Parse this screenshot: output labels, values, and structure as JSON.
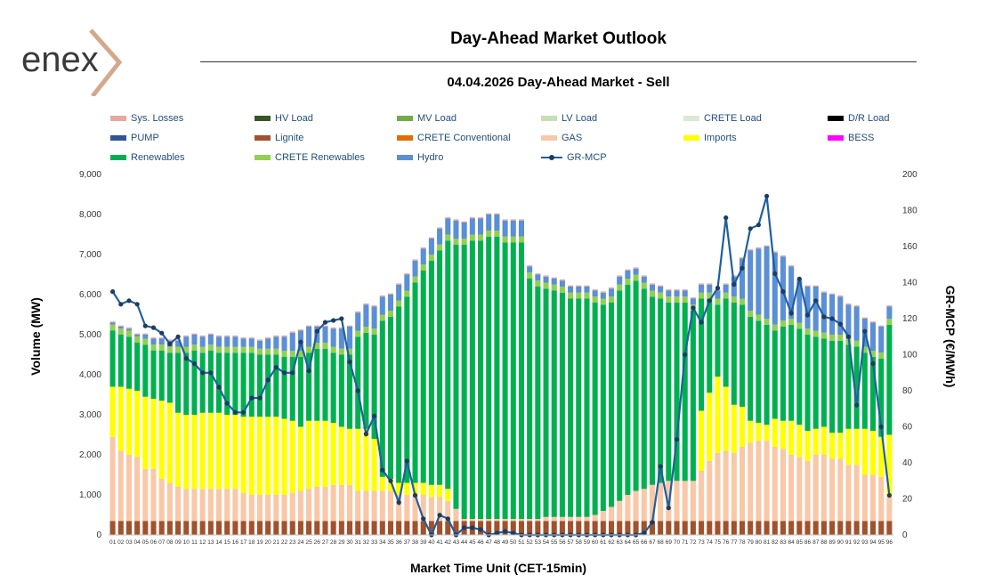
{
  "header": {
    "logo_text": "enex",
    "title": "Day-Ahead Market Outlook",
    "subtitle": "04.04.2026  Day-Ahead Market - Sell"
  },
  "colors": {
    "Sys. Losses": "#e6a8a0",
    "HV Load": "#375623",
    "MV Load": "#70ad47",
    "LV Load": "#c5e0b4",
    "CRETE Load": "#d9ead3",
    "D/R Load": "#000000",
    "PUMP": "#2f5597",
    "Lignite": "#a0522d",
    "CRETE Conventional": "#e36c09",
    "GAS": "#f8c8a8",
    "Imports": "#ffff00",
    "BESS": "#ff00ff",
    "Renewables": "#00b050",
    "CRETE Renewables": "#92d050",
    "Hydro": "#5b8fd6",
    "GR-MCP": "#1f5f9e",
    "lignite_stripe": "#8b3a1a"
  },
  "chart_data": {
    "type": "bar",
    "title": "Day-Ahead Market Outlook",
    "xlabel": "Market Time Unit (CET-15min)",
    "ylabel": "Volume (MW)",
    "y2label": "GR-MCP (€/MWh)",
    "ylim": [
      0,
      9000
    ],
    "y2lim": [
      0,
      200
    ],
    "yticks": [
      "0",
      "1,000",
      "2,000",
      "3,000",
      "4,000",
      "5,000",
      "6,000",
      "7,000",
      "8,000",
      "9,000"
    ],
    "y2ticks": [
      "0",
      "20",
      "40",
      "60",
      "80",
      "100",
      "120",
      "140",
      "160",
      "180",
      "200"
    ],
    "legend": [
      {
        "name": "Sys. Losses",
        "kind": "bar"
      },
      {
        "name": "HV Load",
        "kind": "bar"
      },
      {
        "name": "MV Load",
        "kind": "bar"
      },
      {
        "name": "LV Load",
        "kind": "bar"
      },
      {
        "name": "CRETE Load",
        "kind": "bar"
      },
      {
        "name": "D/R Load",
        "kind": "bar"
      },
      {
        "name": "PUMP",
        "kind": "bar"
      },
      {
        "name": "Lignite",
        "kind": "bar"
      },
      {
        "name": "CRETE Conventional",
        "kind": "bar"
      },
      {
        "name": "GAS",
        "kind": "bar"
      },
      {
        "name": "Imports",
        "kind": "bar"
      },
      {
        "name": "BESS",
        "kind": "bar"
      },
      {
        "name": "Renewables",
        "kind": "bar"
      },
      {
        "name": "CRETE Renewables",
        "kind": "bar"
      },
      {
        "name": "Hydro",
        "kind": "bar"
      },
      {
        "name": "GR-MCP",
        "kind": "line"
      }
    ],
    "categories": [
      "01",
      "02",
      "03",
      "04",
      "05",
      "06",
      "07",
      "08",
      "09",
      "10",
      "11",
      "12",
      "13",
      "14",
      "15",
      "16",
      "17",
      "18",
      "19",
      "20",
      "21",
      "22",
      "23",
      "24",
      "25",
      "26",
      "27",
      "28",
      "29",
      "30",
      "31",
      "32",
      "33",
      "34",
      "35",
      "36",
      "37",
      "38",
      "39",
      "40",
      "41",
      "42",
      "43",
      "44",
      "45",
      "46",
      "47",
      "48",
      "49",
      "50",
      "51",
      "52",
      "53",
      "54",
      "55",
      "56",
      "57",
      "58",
      "59",
      "60",
      "61",
      "62",
      "63",
      "64",
      "65",
      "66",
      "67",
      "68",
      "69",
      "70",
      "71",
      "72",
      "73",
      "74",
      "75",
      "76",
      "77",
      "78",
      "79",
      "80",
      "81",
      "82",
      "83",
      "84",
      "85",
      "86",
      "87",
      "88",
      "89",
      "90",
      "91",
      "92",
      "93",
      "94",
      "95",
      "96"
    ],
    "series": [
      {
        "name": "Lignite",
        "values": [
          350,
          350,
          350,
          350,
          350,
          350,
          350,
          350,
          350,
          350,
          350,
          350,
          350,
          350,
          350,
          350,
          350,
          350,
          350,
          350,
          350,
          350,
          350,
          350,
          350,
          350,
          350,
          350,
          350,
          350,
          350,
          350,
          350,
          350,
          350,
          350,
          350,
          350,
          350,
          350,
          350,
          350,
          350,
          350,
          350,
          350,
          350,
          350,
          350,
          350,
          350,
          350,
          350,
          350,
          350,
          350,
          350,
          350,
          350,
          350,
          350,
          350,
          350,
          350,
          350,
          350,
          350,
          350,
          350,
          350,
          350,
          350,
          350,
          350,
          350,
          350,
          350,
          350,
          350,
          350,
          350,
          350,
          350,
          350,
          350,
          350,
          350,
          350,
          350,
          350,
          350,
          350,
          350,
          350,
          350,
          350
        ]
      },
      {
        "name": "GAS",
        "values": [
          2100,
          1750,
          1650,
          1600,
          1300,
          1300,
          1050,
          950,
          850,
          800,
          800,
          800,
          800,
          800,
          800,
          800,
          700,
          650,
          650,
          650,
          650,
          650,
          700,
          750,
          800,
          850,
          850,
          900,
          900,
          900,
          750,
          750,
          750,
          750,
          750,
          650,
          650,
          650,
          650,
          600,
          600,
          500,
          300,
          50,
          50,
          50,
          50,
          50,
          50,
          50,
          50,
          50,
          50,
          100,
          100,
          100,
          100,
          100,
          100,
          150,
          250,
          350,
          500,
          650,
          750,
          800,
          900,
          950,
          1000,
          1000,
          1000,
          1000,
          1250,
          1500,
          1700,
          1750,
          1700,
          1850,
          1950,
          2000,
          2000,
          1850,
          1800,
          1650,
          1600,
          1500,
          1650,
          1650,
          1550,
          1550,
          1400,
          1400,
          1150,
          1150,
          1100,
          600
        ]
      },
      {
        "name": "Imports",
        "values": [
          1250,
          1600,
          1650,
          1650,
          1800,
          1750,
          1950,
          2000,
          1850,
          1850,
          1850,
          1900,
          1900,
          1900,
          1850,
          1850,
          1900,
          1950,
          1950,
          1950,
          1950,
          1900,
          1800,
          1600,
          1700,
          1650,
          1650,
          1550,
          1450,
          1400,
          1550,
          1550,
          1300,
          350,
          300,
          300,
          300,
          300,
          300,
          300,
          300,
          300,
          0,
          0,
          0,
          0,
          0,
          0,
          0,
          0,
          0,
          0,
          0,
          0,
          0,
          0,
          0,
          0,
          0,
          0,
          0,
          0,
          0,
          0,
          0,
          0,
          0,
          0,
          0,
          0,
          0,
          0,
          1500,
          1700,
          1900,
          1600,
          1200,
          1000,
          550,
          450,
          400,
          700,
          700,
          850,
          800,
          750,
          650,
          700,
          650,
          650,
          900,
          900,
          1150,
          1100,
          1000,
          1550
        ]
      },
      {
        "name": "Renewables",
        "values": [
          1400,
          1300,
          1300,
          1200,
          1300,
          1200,
          1250,
          1250,
          1500,
          1550,
          1600,
          1500,
          1550,
          1500,
          1550,
          1550,
          1600,
          1600,
          1550,
          1550,
          1550,
          1550,
          1600,
          1750,
          1700,
          1800,
          1800,
          1750,
          1800,
          1850,
          2300,
          2400,
          2600,
          3900,
          4050,
          4400,
          4650,
          5000,
          5300,
          5600,
          5850,
          6200,
          6600,
          6850,
          6950,
          6950,
          7050,
          7050,
          6900,
          6900,
          6900,
          6000,
          5800,
          5700,
          5650,
          5600,
          5450,
          5450,
          5450,
          5300,
          5150,
          5100,
          5250,
          5250,
          5250,
          5000,
          4700,
          4600,
          4450,
          4450,
          4450,
          4250,
          2800,
          2350,
          1800,
          2200,
          2550,
          2550,
          2600,
          2550,
          2500,
          2200,
          2350,
          2400,
          2400,
          2400,
          2300,
          2200,
          2300,
          2300,
          2100,
          2050,
          1900,
          1850,
          1950,
          2750
        ]
      },
      {
        "name": "CRETE Renewables",
        "values": [
          150,
          150,
          150,
          150,
          150,
          150,
          150,
          150,
          150,
          150,
          150,
          150,
          150,
          150,
          150,
          150,
          150,
          150,
          150,
          150,
          150,
          150,
          150,
          150,
          150,
          150,
          150,
          150,
          150,
          150,
          150,
          150,
          150,
          150,
          150,
          150,
          150,
          150,
          150,
          150,
          150,
          150,
          150,
          150,
          150,
          150,
          150,
          150,
          150,
          150,
          150,
          150,
          150,
          150,
          150,
          150,
          150,
          150,
          150,
          150,
          150,
          150,
          150,
          150,
          150,
          150,
          150,
          150,
          150,
          150,
          150,
          150,
          150,
          150,
          150,
          150,
          150,
          150,
          150,
          150,
          150,
          150,
          150,
          150,
          150,
          150,
          150,
          150,
          150,
          150,
          150,
          150,
          150,
          150,
          150,
          150
        ]
      },
      {
        "name": "Hydro",
        "values": [
          50,
          50,
          50,
          50,
          100,
          150,
          150,
          150,
          150,
          250,
          250,
          250,
          250,
          250,
          250,
          250,
          200,
          200,
          200,
          250,
          300,
          350,
          450,
          500,
          500,
          400,
          400,
          450,
          500,
          550,
          450,
          550,
          550,
          450,
          400,
          400,
          400,
          400,
          400,
          400,
          400,
          400,
          450,
          400,
          400,
          400,
          400,
          400,
          400,
          400,
          400,
          150,
          150,
          150,
          150,
          150,
          150,
          150,
          150,
          150,
          150,
          200,
          200,
          200,
          150,
          150,
          150,
          150,
          150,
          150,
          150,
          150,
          200,
          200,
          200,
          200,
          500,
          1000,
          1500,
          1650,
          1800,
          1800,
          1600,
          1300,
          1050,
          1050,
          1100,
          1000,
          1000,
          950,
          850,
          850,
          700,
          700,
          650,
          300
        ]
      },
      {
        "name": "Sys. Losses",
        "values": [
          30,
          30,
          30,
          30,
          30,
          30,
          30,
          30,
          30,
          30,
          30,
          30,
          30,
          30,
          30,
          30,
          30,
          30,
          30,
          30,
          30,
          30,
          30,
          30,
          30,
          30,
          30,
          30,
          30,
          30,
          30,
          30,
          30,
          30,
          30,
          30,
          30,
          30,
          30,
          30,
          30,
          30,
          30,
          30,
          30,
          30,
          30,
          30,
          30,
          30,
          30,
          30,
          30,
          30,
          30,
          30,
          30,
          30,
          30,
          30,
          30,
          30,
          30,
          30,
          30,
          30,
          30,
          30,
          30,
          30,
          30,
          30,
          30,
          30,
          30,
          30,
          30,
          30,
          30,
          30,
          30,
          30,
          30,
          30,
          30,
          30,
          30,
          30,
          30,
          30,
          30,
          30,
          30,
          30,
          30,
          30
        ]
      },
      {
        "name": "GR-MCP",
        "axis": "right",
        "values": [
          135,
          128,
          130,
          128,
          116,
          115,
          112,
          106,
          110,
          98,
          95,
          90,
          90,
          82,
          73,
          68,
          68,
          76,
          76,
          86,
          93,
          90,
          90,
          107,
          91,
          113,
          118,
          119,
          120,
          96,
          80,
          56,
          66,
          36,
          30,
          18,
          41,
          22,
          9,
          0,
          11,
          9,
          0,
          4,
          4,
          3,
          0,
          1,
          2,
          1,
          0,
          0,
          0,
          0,
          0,
          0,
          0,
          0,
          0,
          0,
          0,
          0,
          0,
          0,
          0,
          1,
          7,
          38,
          15,
          53,
          100,
          126,
          118,
          130,
          137,
          176,
          139,
          148,
          170,
          172,
          188,
          145,
          135,
          123,
          142,
          122,
          130,
          121,
          120,
          117,
          110,
          72,
          113,
          95,
          60,
          22
        ]
      }
    ]
  },
  "ylabel": "Volume (MW)",
  "y2label": "GR-MCP (€/MWh)",
  "xlabel": "Market Time Unit (CET-15min)"
}
